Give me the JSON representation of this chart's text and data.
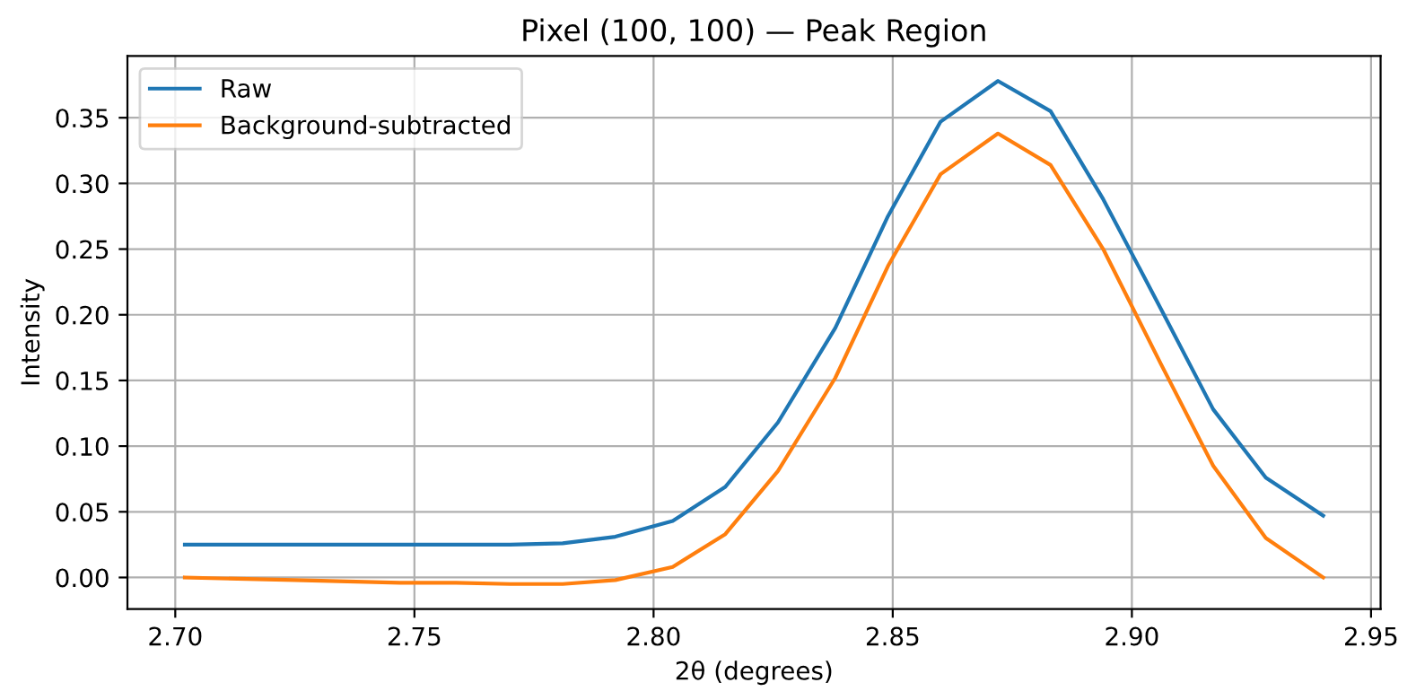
{
  "chart_data": {
    "type": "line",
    "title": "Pixel (100, 100) — Peak Region",
    "xlabel": "2θ (degrees)",
    "ylabel": "Intensity",
    "x": [
      2.702,
      2.713,
      2.725,
      2.736,
      2.747,
      2.758,
      2.77,
      2.781,
      2.792,
      2.804,
      2.815,
      2.826,
      2.838,
      2.849,
      2.86,
      2.872,
      2.883,
      2.894,
      2.906,
      2.917,
      2.928,
      2.94
    ],
    "series": [
      {
        "name": "Raw",
        "color": "#1f77b4",
        "values": [
          0.025,
          0.025,
          0.025,
          0.025,
          0.025,
          0.025,
          0.025,
          0.026,
          0.031,
          0.043,
          0.069,
          0.118,
          0.19,
          0.275,
          0.347,
          0.378,
          0.355,
          0.288,
          0.205,
          0.128,
          0.076,
          0.047
        ]
      },
      {
        "name": "Background-subtracted",
        "color": "#ff7f0e",
        "values": [
          0,
          -0.001,
          -0.002,
          -0.003,
          -0.004,
          -0.004,
          -0.005,
          -0.005,
          -0.002,
          0.008,
          0.033,
          0.081,
          0.152,
          0.237,
          0.307,
          0.338,
          0.314,
          0.25,
          0.163,
          0.085,
          0.03,
          0
        ]
      }
    ],
    "xlim": [
      2.69,
      2.952
    ],
    "ylim": [
      -0.024,
      0.397
    ],
    "xticks": [
      {
        "value": 2.7,
        "label": "2.70"
      },
      2.75,
      {
        "value": 2.8,
        "label": "2.80"
      },
      2.85,
      {
        "value": 2.9,
        "label": "2.90"
      },
      2.95
    ],
    "yticks": [
      {
        "value": 0,
        "label": "0.00"
      },
      {
        "value": 0.05,
        "label": "0.05"
      },
      {
        "value": 0.1,
        "label": "0.10"
      },
      {
        "value": 0.15,
        "label": "0.15"
      },
      {
        "value": 0.2,
        "label": "0.20"
      },
      {
        "value": 0.25,
        "label": "0.25"
      },
      {
        "value": 0.3,
        "label": "0.30"
      },
      {
        "value": 0.35,
        "label": "0.35"
      }
    ],
    "grid": true,
    "legend": "top left",
    "marker": "none",
    "line_style": "solid"
  }
}
